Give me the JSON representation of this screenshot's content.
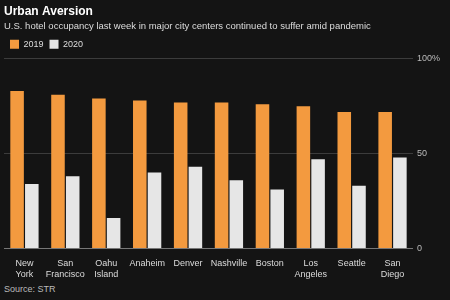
{
  "chart_data": {
    "type": "bar",
    "title": "Urban Aversion",
    "subtitle": "U.S. hotel occupancy last week in major city centers continued to suffer amid pandemic",
    "source": "Source: STR",
    "categories": [
      "New York",
      "San Francisco",
      "Oahu Island",
      "Anaheim",
      "Denver",
      "Nashville",
      "Boston",
      "Los Angeles",
      "Seattle",
      "San Diego"
    ],
    "series": [
      {
        "name": "2019",
        "color": "#f39a3f",
        "values": [
          83,
          81,
          79,
          78,
          77,
          77,
          76,
          75,
          72,
          72
        ]
      },
      {
        "name": "2020",
        "color": "#e6e6e6",
        "values": [
          34,
          38,
          16,
          40,
          43,
          36,
          31,
          47,
          33,
          48
        ]
      }
    ],
    "ylim": [
      0,
      100
    ],
    "yticks": [
      0,
      50,
      {
        "value": 100,
        "label": "100%"
      }
    ],
    "grid": true,
    "legend": "top-left"
  }
}
